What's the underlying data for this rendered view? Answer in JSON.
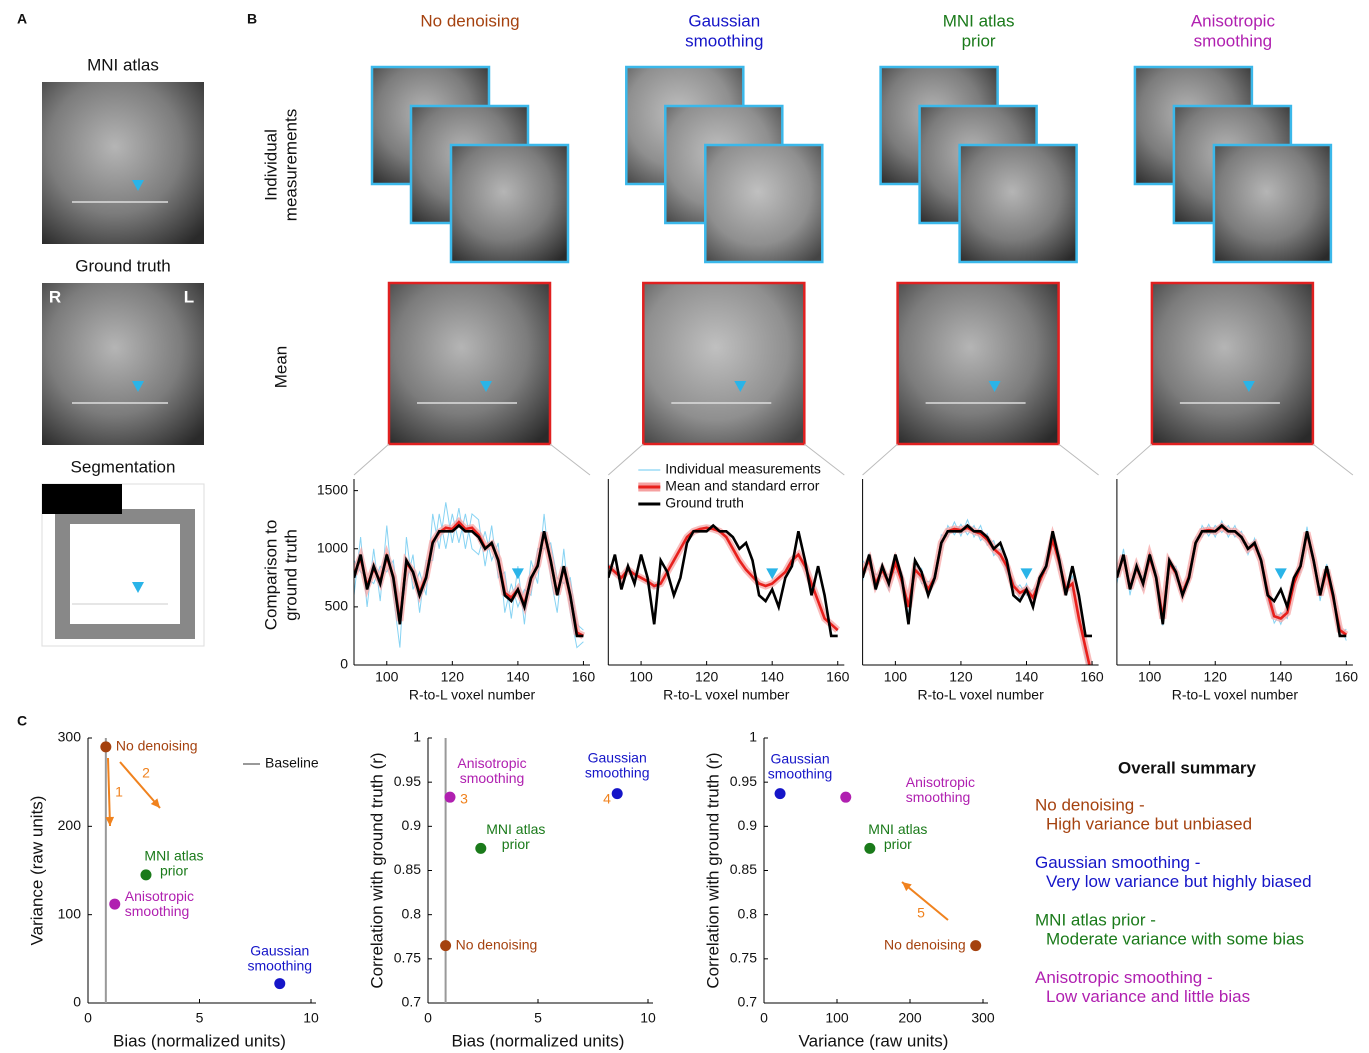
{
  "panel_labels": [
    "A",
    "B",
    "C"
  ],
  "panel_a": {
    "titles": [
      "MNI atlas",
      "Ground truth",
      "Segmentation"
    ],
    "orientation": [
      "R",
      "L"
    ]
  },
  "panel_b": {
    "methods": [
      {
        "name_lines": [
          "No denoising"
        ],
        "color": "#a5420f"
      },
      {
        "name_lines": [
          "Gaussian",
          "smoothing"
        ],
        "color": "#1515c8"
      },
      {
        "name_lines": [
          "MNI atlas",
          "prior"
        ],
        "color": "#1a7a1a"
      },
      {
        "name_lines": [
          "Anisotropic",
          "smoothing"
        ],
        "color": "#b020b0"
      }
    ],
    "row_labels": [
      [
        "Individual",
        "measurements"
      ],
      [
        "Mean"
      ],
      [
        "Comparison to",
        "ground truth"
      ]
    ]
  },
  "chart_data": [
    {
      "type": "line",
      "xlabel": "R-to-L voxel number",
      "xlim": [
        90,
        162
      ],
      "ylim": [
        0,
        1600
      ],
      "xticks": [
        100,
        120,
        140,
        160
      ],
      "yticks": [
        0,
        500,
        1000,
        1500
      ],
      "x": [
        90,
        92,
        94,
        96,
        98,
        100,
        102,
        104,
        106,
        108,
        110,
        112,
        114,
        116,
        118,
        120,
        122,
        124,
        126,
        128,
        130,
        132,
        134,
        136,
        138,
        140,
        142,
        144,
        146,
        148,
        150,
        152,
        154,
        156,
        158,
        160
      ],
      "individual": {
        "color": "#87d3f3",
        "values": [
          [
            600,
            1100,
            500,
            1000,
            550,
            1200,
            600,
            150,
            1100,
            650,
            800,
            600,
            1300,
            1000,
            1400,
            1050,
            1350,
            1000,
            1300,
            1250,
            850,
            1200,
            750,
            800,
            400,
            850,
            350,
            900,
            700,
            1300,
            750,
            450,
            1000,
            450,
            150,
            200
          ],
          [
            900,
            800,
            750,
            700,
            850,
            800,
            900,
            450,
            700,
            950,
            450,
            900,
            900,
            1300,
            1000,
            1300,
            1050,
            1300,
            1000,
            950,
            1150,
            900,
            1050,
            450,
            700,
            500,
            650,
            600,
            1000,
            1000,
            1050,
            750,
            700,
            750,
            350,
            300
          ]
        ]
      },
      "series": [
        {
          "color": "#e8201c",
          "values": [
            780,
            920,
            680,
            830,
            720,
            930,
            760,
            380,
            880,
            800,
            620,
            760,
            1060,
            1140,
            1180,
            1170,
            1230,
            1170,
            1180,
            1120,
            1010,
            1040,
            910,
            620,
            580,
            650,
            520,
            740,
            860,
            1140,
            890,
            610,
            840,
            590,
            280,
            250
          ]
        },
        {
          "color": "#000000",
          "values": [
            750,
            950,
            650,
            850,
            700,
            950,
            750,
            350,
            900,
            800,
            600,
            750,
            1050,
            1150,
            1150,
            1150,
            1200,
            1150,
            1150,
            1100,
            1000,
            1050,
            900,
            600,
            550,
            650,
            500,
            750,
            850,
            1150,
            900,
            600,
            850,
            600,
            250,
            250
          ]
        }
      ]
    },
    {
      "type": "line",
      "xlabel": "R-to-L voxel number",
      "xlim": [
        90,
        162
      ],
      "ylim": [
        0,
        1600
      ],
      "xticks": [
        100,
        120,
        140,
        160
      ],
      "legend": true,
      "x": [
        90,
        92,
        94,
        96,
        98,
        100,
        102,
        104,
        106,
        108,
        110,
        112,
        114,
        116,
        118,
        120,
        122,
        124,
        126,
        128,
        130,
        132,
        134,
        136,
        138,
        140,
        142,
        144,
        146,
        148,
        150,
        152,
        154,
        156,
        158,
        160
      ],
      "individual": {
        "name": "Individual measurements",
        "color": "#87d3f3",
        "values": [
          [
            870,
            780,
            770,
            800,
            800,
            740,
            730,
            660,
            720,
            790,
            920,
            990,
            1110,
            1140,
            1180,
            1170,
            1180,
            1140,
            1110,
            990,
            910,
            810,
            770,
            690,
            690,
            690,
            760,
            790,
            910,
            940,
            860,
            690,
            560,
            390,
            360,
            290
          ],
          [
            830,
            820,
            740,
            840,
            760,
            760,
            700,
            700,
            690,
            810,
            880,
            1010,
            1090,
            1160,
            1160,
            1190,
            1160,
            1160,
            1090,
            1010,
            890,
            830,
            750,
            710,
            670,
            710,
            740,
            810,
            890,
            960,
            840,
            710,
            540,
            410,
            340,
            310
          ]
        ]
      },
      "series": [
        {
          "name": "Mean and standard error",
          "color": "#e8201c",
          "values": [
            850,
            800,
            750,
            820,
            780,
            750,
            720,
            680,
            700,
            800,
            900,
            1000,
            1100,
            1150,
            1170,
            1180,
            1170,
            1150,
            1100,
            1000,
            900,
            820,
            760,
            700,
            680,
            700,
            750,
            800,
            900,
            950,
            850,
            700,
            550,
            400,
            350,
            300
          ]
        },
        {
          "name": "Ground truth",
          "color": "#000000",
          "values": [
            750,
            950,
            650,
            850,
            700,
            950,
            750,
            350,
            900,
            800,
            600,
            750,
            1050,
            1150,
            1150,
            1150,
            1200,
            1150,
            1150,
            1100,
            1000,
            1050,
            900,
            600,
            550,
            650,
            500,
            750,
            850,
            1150,
            900,
            600,
            850,
            600,
            250,
            250
          ]
        }
      ]
    },
    {
      "type": "line",
      "xlabel": "R-to-L voxel number",
      "xlim": [
        90,
        162
      ],
      "ylim": [
        0,
        1600
      ],
      "xticks": [
        100,
        120,
        140,
        160
      ],
      "x": [
        90,
        92,
        94,
        96,
        98,
        100,
        102,
        104,
        106,
        108,
        110,
        112,
        114,
        116,
        118,
        120,
        122,
        124,
        126,
        128,
        130,
        132,
        134,
        136,
        138,
        140,
        142,
        144,
        146,
        148,
        150,
        152,
        154,
        156,
        158,
        160
      ],
      "individual": {
        "color": "#87d3f3",
        "values": [
          [
            900,
            820,
            780,
            760,
            780,
            800,
            800,
            420,
            900,
            700,
            720,
            700,
            1120,
            1100,
            1230,
            1110,
            1250,
            1100,
            1200,
            1030,
            1070,
            900,
            920,
            630,
            690,
            600,
            650,
            680,
            920,
            1030,
            950,
            600,
            770,
            350,
            150,
            -50
          ],
          [
            720,
            960,
            640,
            880,
            640,
            950,
            660,
            560,
            760,
            830,
            600,
            800,
            990,
            1200,
            1120,
            1210,
            1120,
            1200,
            1070,
            1130,
            940,
            1000,
            790,
            730,
            560,
            700,
            520,
            770,
            790,
            1130,
            820,
            700,
            640,
            450,
            60,
            -150
          ]
        ]
      },
      "series": [
        {
          "color": "#e8201c",
          "values": [
            800,
            900,
            700,
            820,
            700,
            880,
            720,
            500,
            820,
            760,
            650,
            750,
            1050,
            1150,
            1170,
            1160,
            1180,
            1150,
            1130,
            1080,
            1000,
            950,
            850,
            680,
            620,
            650,
            580,
            720,
            850,
            1080,
            880,
            650,
            700,
            400,
            150,
            -100
          ]
        },
        {
          "color": "#000000",
          "values": [
            750,
            950,
            650,
            850,
            700,
            950,
            750,
            350,
            900,
            800,
            600,
            750,
            1050,
            1150,
            1150,
            1150,
            1200,
            1150,
            1150,
            1100,
            1000,
            1050,
            900,
            600,
            550,
            650,
            500,
            750,
            850,
            1150,
            900,
            600,
            850,
            600,
            250,
            250
          ]
        }
      ]
    },
    {
      "type": "line",
      "xlabel": "R-to-L voxel number",
      "xlim": [
        90,
        162
      ],
      "ylim": [
        0,
        1600
      ],
      "xticks": [
        100,
        120,
        140,
        160
      ],
      "x": [
        90,
        92,
        94,
        96,
        98,
        100,
        102,
        104,
        106,
        108,
        110,
        112,
        114,
        116,
        118,
        120,
        122,
        124,
        126,
        128,
        130,
        132,
        134,
        136,
        138,
        140,
        142,
        144,
        146,
        148,
        150,
        152,
        154,
        156,
        158,
        160
      ],
      "individual": {
        "color": "#87d3f3",
        "values": [
          [
            820,
            880,
            720,
            790,
            760,
            880,
            810,
            460,
            830,
            850,
            570,
            810,
            1000,
            1200,
            1110,
            1200,
            1140,
            1200,
            1100,
            1150,
            950,
            1090,
            850,
            670,
            480,
            350,
            500,
            650,
            900,
            1090,
            950,
            550,
            870,
            530,
            350,
            210
          ],
          [
            700,
            1000,
            600,
            890,
            640,
            980,
            690,
            340,
            930,
            730,
            670,
            710,
            1100,
            1100,
            1210,
            1100,
            1240,
            1100,
            1200,
            1050,
            1050,
            990,
            950,
            570,
            360,
            450,
            400,
            750,
            800,
            1190,
            850,
            650,
            770,
            630,
            250,
            310
          ]
        ]
      },
      "series": [
        {
          "color": "#e8201c",
          "values": [
            760,
            940,
            660,
            840,
            700,
            930,
            750,
            400,
            880,
            790,
            620,
            760,
            1050,
            1150,
            1160,
            1150,
            1190,
            1150,
            1150,
            1100,
            1000,
            1040,
            900,
            620,
            420,
            400,
            450,
            700,
            850,
            1140,
            900,
            600,
            820,
            580,
            300,
            260
          ]
        },
        {
          "color": "#000000",
          "values": [
            750,
            950,
            650,
            850,
            700,
            950,
            750,
            350,
            900,
            800,
            600,
            750,
            1050,
            1150,
            1150,
            1150,
            1200,
            1150,
            1150,
            1100,
            1000,
            1050,
            900,
            600,
            550,
            650,
            500,
            750,
            850,
            1150,
            900,
            600,
            850,
            600,
            250,
            250
          ]
        }
      ]
    },
    {
      "type": "scatter",
      "xlabel": "Bias (normalized units)",
      "ylabel": "Variance (raw units)",
      "xlim": [
        0,
        10
      ],
      "ylim": [
        0,
        300
      ],
      "xticks": [
        0,
        5,
        10
      ],
      "yticks": [
        0,
        100,
        200,
        300
      ],
      "baseline": {
        "name": "Baseline",
        "x": 0.8
      },
      "annotations": [
        "1",
        "2"
      ],
      "labels": [
        [
          "No denoising"
        ],
        [
          "MNI atlas",
          "prior"
        ],
        [
          "Anisotropic",
          "smoothing"
        ],
        [
          "Gaussian",
          "smoothing"
        ]
      ],
      "colors": [
        "#a5420f",
        "#1a7a1a",
        "#b020b0",
        "#1515c8"
      ],
      "x": [
        0.8,
        2.6,
        1.2,
        8.6
      ],
      "values": [
        290,
        145,
        112,
        22
      ]
    },
    {
      "type": "scatter",
      "xlabel": "Bias (normalized units)",
      "ylabel": "Correlation with ground truth (r)",
      "xlim": [
        0,
        10
      ],
      "ylim": [
        0.7,
        1
      ],
      "xticks": [
        0,
        5,
        10
      ],
      "yticks": [
        0.7,
        0.75,
        0.8,
        0.85,
        0.9,
        0.95,
        1
      ],
      "baseline": {
        "x": 0.8
      },
      "annotations": [
        "3",
        "4"
      ],
      "labels": [
        [
          "No denoising"
        ],
        [
          "Anisotropic",
          "smoothing"
        ],
        [
          "MNI atlas",
          "prior"
        ],
        [
          "Gaussian",
          "smoothing"
        ]
      ],
      "colors": [
        "#a5420f",
        "#b020b0",
        "#1a7a1a",
        "#1515c8"
      ],
      "x": [
        0.8,
        1.0,
        2.4,
        8.6
      ],
      "values": [
        0.765,
        0.933,
        0.875,
        0.937
      ]
    },
    {
      "type": "scatter",
      "xlabel": "Variance (raw units)",
      "ylabel": "Correlation with ground truth (r)",
      "xlim": [
        0,
        300
      ],
      "ylim": [
        0.7,
        1
      ],
      "xticks": [
        0,
        100,
        200,
        300
      ],
      "yticks": [
        0.7,
        0.75,
        0.8,
        0.85,
        0.9,
        0.95,
        1
      ],
      "annotations": [
        "5"
      ],
      "labels": [
        [
          "Gaussian",
          "smoothing"
        ],
        [
          "Anisotropic",
          "smoothing"
        ],
        [
          "MNI atlas",
          "prior"
        ],
        [
          "No denoising"
        ]
      ],
      "colors": [
        "#1515c8",
        "#b020b0",
        "#1a7a1a",
        "#a5420f"
      ],
      "x": [
        22,
        112,
        145,
        290
      ],
      "values": [
        0.937,
        0.933,
        0.875,
        0.765
      ]
    }
  ],
  "summary": {
    "title": "Overall summary",
    "items": [
      {
        "heading": "No denoising -",
        "text": "High variance but unbiased",
        "color": "#a5420f"
      },
      {
        "heading": "Gaussian smoothing -",
        "text": "Very low variance but highly biased",
        "color": "#1515c8"
      },
      {
        "heading": "MNI atlas prior -",
        "text": "Moderate variance with some bias",
        "color": "#1a7a1a"
      },
      {
        "heading": "Anisotropic smoothing -",
        "text": "Low variance and little bias",
        "color": "#b020b0"
      }
    ]
  }
}
